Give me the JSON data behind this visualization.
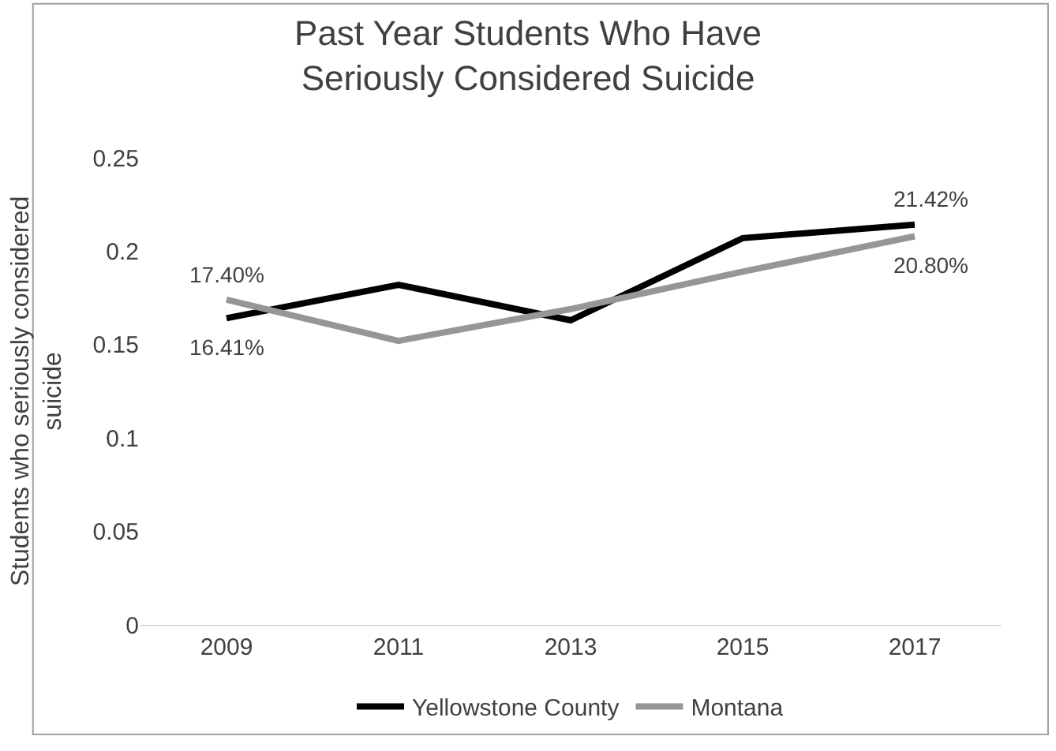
{
  "chart_data": {
    "type": "line",
    "title": "Past Year Students Who Have Seriously Considered Suicide",
    "ylabel": "Students who seriously considered suicide",
    "categories": [
      "2009",
      "2011",
      "2013",
      "2015",
      "2017"
    ],
    "series": [
      {
        "name": "Yellowstone County",
        "color": "#000000",
        "values": [
          0.1641,
          0.182,
          0.163,
          0.207,
          0.2142
        ],
        "value_labels": [
          "16.41%",
          null,
          null,
          null,
          "21.42%"
        ]
      },
      {
        "name": "Montana",
        "color": "#969696",
        "values": [
          0.174,
          0.152,
          0.169,
          0.189,
          0.208
        ],
        "value_labels": [
          "17.40%",
          null,
          null,
          null,
          "20.80%"
        ]
      }
    ],
    "ylim": [
      0,
      0.25
    ],
    "yticks": [
      0,
      0.05,
      0.1,
      0.15,
      0.2,
      0.25
    ],
    "legend": "bottom",
    "marker": "none",
    "line_style": "solid"
  }
}
